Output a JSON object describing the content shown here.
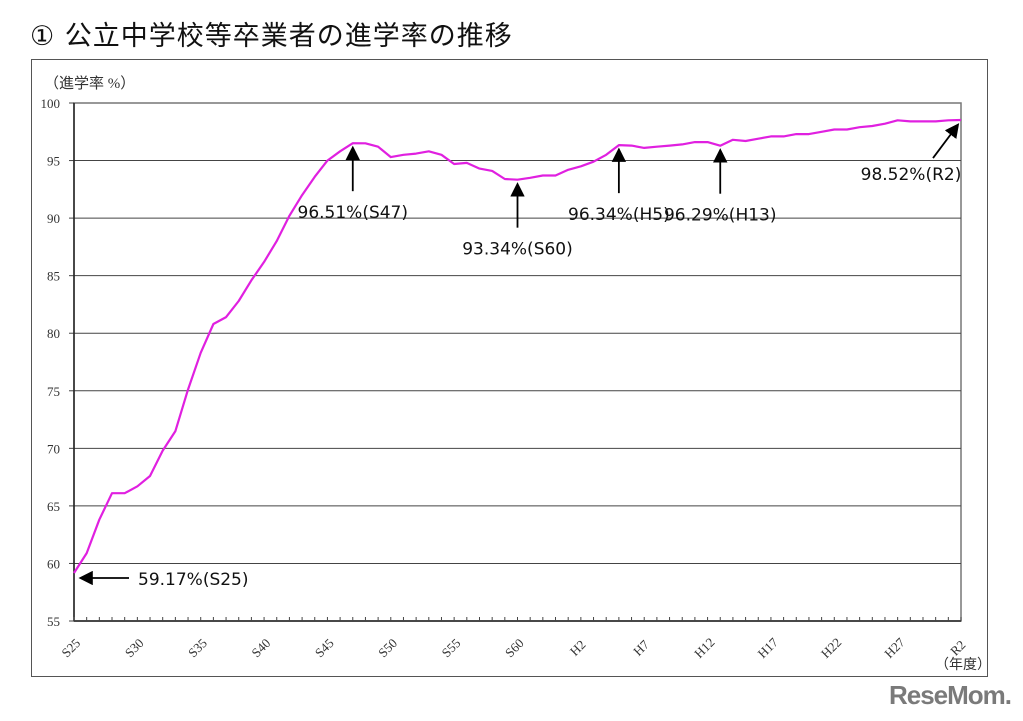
{
  "page": {
    "title": "① 公立中学校等卒業者の進学率の推移",
    "y_unit_label": "（進学率 %）",
    "x_unit_label": "（年度）",
    "watermark": "ReseMom."
  },
  "chart_data": {
    "type": "line",
    "title": "公立中学校等卒業者の進学率の推移",
    "xlabel": "（年度）",
    "ylabel": "（進学率 %）",
    "ylim": [
      55,
      100
    ],
    "yticks": [
      55,
      60,
      65,
      70,
      75,
      80,
      85,
      90,
      95,
      100
    ],
    "grid": true,
    "legend": "none",
    "line_color": "#e020e0",
    "x_tick_labels": [
      "S25",
      "S30",
      "S35",
      "S40",
      "S45",
      "S50",
      "S55",
      "S60",
      "H2",
      "H7",
      "H12",
      "H17",
      "H22",
      "H27",
      "R2"
    ],
    "x": [
      "S25",
      "S26",
      "S27",
      "S28",
      "S29",
      "S30",
      "S31",
      "S32",
      "S33",
      "S34",
      "S35",
      "S36",
      "S37",
      "S38",
      "S39",
      "S40",
      "S41",
      "S42",
      "S43",
      "S44",
      "S45",
      "S46",
      "S47",
      "S48",
      "S49",
      "S50",
      "S51",
      "S52",
      "S53",
      "S54",
      "S55",
      "S56",
      "S57",
      "S58",
      "S59",
      "S60",
      "S61",
      "S62",
      "S63",
      "H1",
      "H2",
      "H3",
      "H4",
      "H5",
      "H6",
      "H7",
      "H8",
      "H9",
      "H10",
      "H11",
      "H12",
      "H13",
      "H14",
      "H15",
      "H16",
      "H17",
      "H18",
      "H19",
      "H20",
      "H21",
      "H22",
      "H23",
      "H24",
      "H25",
      "H26",
      "H27",
      "H28",
      "H29",
      "H30",
      "R1",
      "R2"
    ],
    "series": [
      {
        "name": "進学率",
        "values": [
          59.17,
          60.9,
          63.8,
          66.1,
          66.1,
          66.7,
          67.6,
          69.8,
          71.5,
          75.1,
          78.3,
          80.8,
          81.4,
          82.8,
          84.6,
          86.2,
          88.0,
          90.2,
          92.0,
          93.6,
          95.0,
          95.8,
          96.51,
          96.5,
          96.2,
          95.3,
          95.5,
          95.6,
          95.8,
          95.5,
          94.7,
          94.8,
          94.3,
          94.1,
          93.4,
          93.34,
          93.5,
          93.7,
          93.7,
          94.2,
          94.5,
          94.9,
          95.5,
          96.34,
          96.3,
          96.1,
          96.2,
          96.3,
          96.4,
          96.6,
          96.6,
          96.29,
          96.8,
          96.7,
          96.9,
          97.1,
          97.1,
          97.3,
          97.3,
          97.5,
          97.7,
          97.7,
          97.9,
          98.0,
          98.2,
          98.5,
          98.4,
          98.4,
          98.4,
          98.5,
          98.52
        ]
      }
    ],
    "annotations": [
      {
        "label": "59.17%(S25)",
        "x": "S25",
        "y": 59.17,
        "arrow": "left"
      },
      {
        "label": "96.51%(S47)",
        "x": "S47",
        "y": 96.51,
        "arrow": "up"
      },
      {
        "label": "93.34%(S60)",
        "x": "S60",
        "y": 93.34,
        "arrow": "up"
      },
      {
        "label": "96.34%(H5)",
        "x": "H5",
        "y": 96.34,
        "arrow": "up"
      },
      {
        "label": "96.29%(H13)",
        "x": "H13",
        "y": 96.29,
        "arrow": "up"
      },
      {
        "label": "98.52%(R2)",
        "x": "R2",
        "y": 98.52,
        "arrow": "up-right"
      }
    ]
  }
}
